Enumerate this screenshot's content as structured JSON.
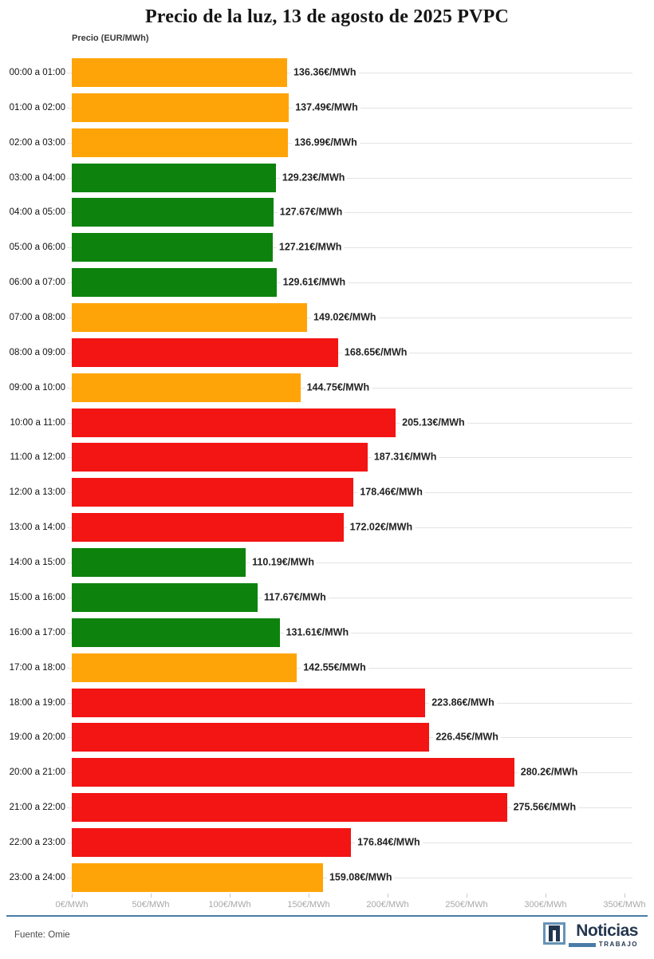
{
  "chart_data": {
    "type": "bar",
    "orientation": "horizontal",
    "title": "Precio de la luz, 13 de agosto de 2025 PVPC",
    "axis_title": "Precio (EUR/MWh)",
    "xlim": [
      0,
      350
    ],
    "grid": "horizontal",
    "x_tick_labels": [
      "0€/MWh",
      "50€/MWh",
      "100€/MWh",
      "150€/MWh",
      "200€/MWh",
      "250€/MWh",
      "300€/MWh",
      "350€/MWh"
    ],
    "palette": {
      "orange": "#ffa408",
      "green": "#0d830d",
      "red": "#f31414"
    },
    "rows": [
      {
        "hour": "00:00 a 01:00",
        "value": 136.36,
        "label": "136.36€/MWh",
        "color": "orange"
      },
      {
        "hour": "01:00 a 02:00",
        "value": 137.49,
        "label": "137.49€/MWh",
        "color": "orange"
      },
      {
        "hour": "02:00 a 03:00",
        "value": 136.99,
        "label": "136.99€/MWh",
        "color": "orange"
      },
      {
        "hour": "03:00 a 04:00",
        "value": 129.23,
        "label": "129.23€/MWh",
        "color": "green"
      },
      {
        "hour": "04:00 a 05:00",
        "value": 127.67,
        "label": "127.67€/MWh",
        "color": "green"
      },
      {
        "hour": "05:00 a 06:00",
        "value": 127.21,
        "label": "127.21€/MWh",
        "color": "green"
      },
      {
        "hour": "06:00 a 07:00",
        "value": 129.61,
        "label": "129.61€/MWh",
        "color": "green"
      },
      {
        "hour": "07:00 a 08:00",
        "value": 149.02,
        "label": "149.02€/MWh",
        "color": "orange"
      },
      {
        "hour": "08:00 a 09:00",
        "value": 168.65,
        "label": "168.65€/MWh",
        "color": "red"
      },
      {
        "hour": "09:00 a 10:00",
        "value": 144.75,
        "label": "144.75€/MWh",
        "color": "orange"
      },
      {
        "hour": "10:00 a 11:00",
        "value": 205.13,
        "label": "205.13€/MWh",
        "color": "red"
      },
      {
        "hour": "11:00 a 12:00",
        "value": 187.31,
        "label": "187.31€/MWh",
        "color": "red"
      },
      {
        "hour": "12:00 a 13:00",
        "value": 178.46,
        "label": "178.46€/MWh",
        "color": "red"
      },
      {
        "hour": "13:00 a 14:00",
        "value": 172.02,
        "label": "172.02€/MWh",
        "color": "red"
      },
      {
        "hour": "14:00 a 15:00",
        "value": 110.19,
        "label": "110.19€/MWh",
        "color": "green"
      },
      {
        "hour": "15:00 a 16:00",
        "value": 117.67,
        "label": "117.67€/MWh",
        "color": "green"
      },
      {
        "hour": "16:00 a 17:00",
        "value": 131.61,
        "label": "131.61€/MWh",
        "color": "green"
      },
      {
        "hour": "17:00 a 18:00",
        "value": 142.55,
        "label": "142.55€/MWh",
        "color": "orange"
      },
      {
        "hour": "18:00 a 19:00",
        "value": 223.86,
        "label": "223.86€/MWh",
        "color": "red"
      },
      {
        "hour": "19:00 a 20:00",
        "value": 226.45,
        "label": "226.45€/MWh",
        "color": "red"
      },
      {
        "hour": "20:00 a 21:00",
        "value": 280.2,
        "label": "280.2€/MWh",
        "color": "red"
      },
      {
        "hour": "21:00 a 22:00",
        "value": 275.56,
        "label": "275.56€/MWh",
        "color": "red"
      },
      {
        "hour": "22:00 a 23:00",
        "value": 176.84,
        "label": "176.84€/MWh",
        "color": "red"
      },
      {
        "hour": "23:00 a 24:00",
        "value": 159.08,
        "label": "159.08€/MWh",
        "color": "orange"
      }
    ]
  },
  "footer": {
    "source": "Fuente: Omie",
    "brand": {
      "name": "Noticias",
      "sub": "TRABAJO"
    },
    "accent_color": "#4a7ba6",
    "navy_color": "#243750"
  }
}
